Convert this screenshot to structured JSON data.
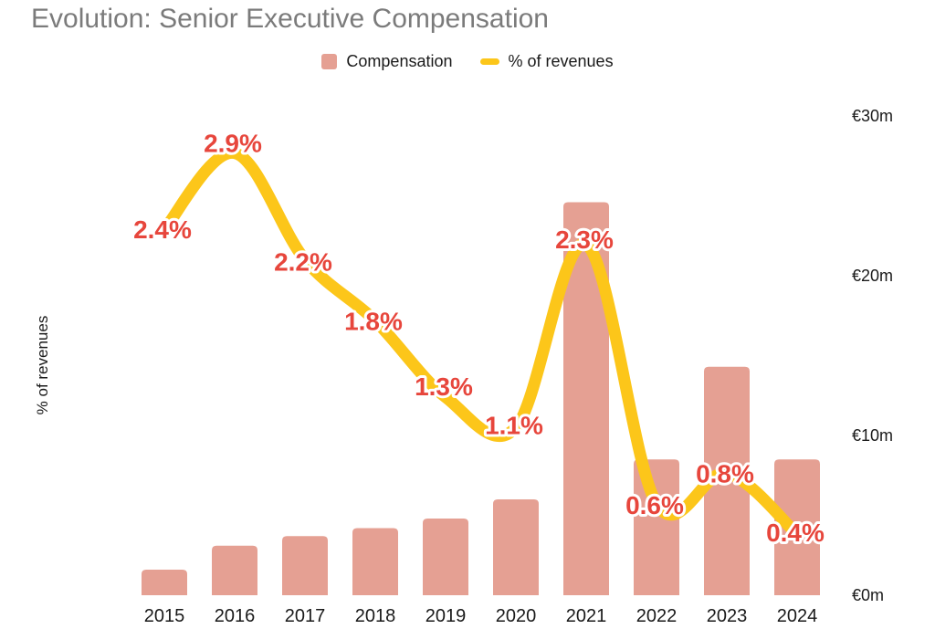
{
  "chart_data": {
    "type": "bar+line combo",
    "title": "Evolution: Senior Executive Compensation",
    "categories": [
      "2015",
      "2016",
      "2017",
      "2018",
      "2019",
      "2020",
      "2021",
      "2022",
      "2023",
      "2024"
    ],
    "series": [
      {
        "name": "Compensation",
        "chart": "bar",
        "unit": "€m",
        "color": "#e5a093",
        "values": [
          1.6,
          3.1,
          3.7,
          4.2,
          4.8,
          6.0,
          24.6,
          8.5,
          14.3,
          8.5
        ]
      },
      {
        "name": "% of revenues",
        "chart": "line",
        "unit": "%",
        "color": "#fcc61a",
        "values": [
          2.4,
          2.9,
          2.2,
          1.8,
          1.3,
          1.1,
          2.3,
          0.6,
          0.8,
          0.4
        ],
        "point_labels": [
          "2.4%",
          "2.9%",
          "2.2%",
          "1.8%",
          "1.3%",
          "1.1%",
          "2.3%",
          "0.6%",
          "0.8%",
          "0.4%"
        ],
        "point_label_color": "#e7463c"
      }
    ],
    "left_axis_label": "% of revenues",
    "right_axis": {
      "ticks": [
        "€30m",
        "€20m",
        "€10m",
        "€0m"
      ],
      "tick_values": [
        30,
        20,
        10,
        0
      ],
      "range": [
        0,
        30
      ],
      "unit": "€m"
    },
    "line_axis_range": [
      0,
      3
    ],
    "grid": false,
    "legend_position": "top",
    "colors": {
      "bar": "#e5a093",
      "line": "#fcc61a",
      "point_label": "#e7463c",
      "title": "#7b7b7b",
      "axis_text": "#1a1a1a",
      "background": "#ffffff"
    }
  }
}
